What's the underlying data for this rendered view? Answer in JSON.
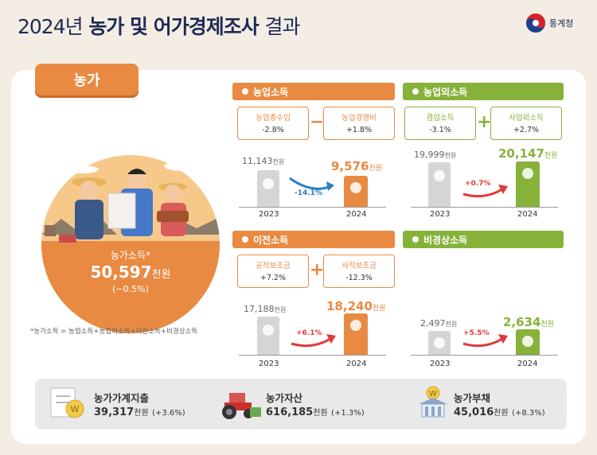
{
  "header": {
    "title_year": "2024년",
    "title_main": "농가 및 어가경제조사",
    "title_tail": "결과",
    "agency": "통계청"
  },
  "tab": {
    "label": "농가"
  },
  "farm_income": {
    "label": "농가소득*",
    "value": "50,597",
    "unit": "천원",
    "change": "(−0.5%)",
    "formula": "*농가소득 = 농업소득+농업외소득+이전소득+비경상소득"
  },
  "sections": {
    "ag_income": {
      "title": "농업소득",
      "comp1_name": "농업총수입",
      "comp1_pct": "-2.8%",
      "op": "−",
      "comp2_name": "농업경영비",
      "comp2_pct": "+1.8%",
      "v2023": "11,143",
      "v2024": "9,576",
      "unit": "천원",
      "change": "-14.1%",
      "y1": "2023",
      "y2": "2024"
    },
    "non_ag_income": {
      "title": "농업외소득",
      "comp1_name": "겸업소득",
      "comp1_pct": "-3.1%",
      "op": "+",
      "comp2_name": "사업외소득",
      "comp2_pct": "+2.7%",
      "v2023": "19,999",
      "v2024": "20,147",
      "unit": "천원",
      "change": "+0.7%",
      "y1": "2023",
      "y2": "2024"
    },
    "transfer_income": {
      "title": "이전소득",
      "comp1_name": "공적보조금",
      "comp1_pct": "+7.2%",
      "op": "+",
      "comp2_name": "사적보조금",
      "comp2_pct": "-12.3%",
      "v2023": "17,188",
      "v2024": "18,240",
      "unit": "천원",
      "change": "+6.1%",
      "y1": "2023",
      "y2": "2024"
    },
    "irregular_income": {
      "title": "비경상소득",
      "v2023": "2,497",
      "v2024": "2,634",
      "unit": "천원",
      "change": "+5.5%",
      "y1": "2023",
      "y2": "2024"
    }
  },
  "bottom": {
    "expense": {
      "name": "농가가계지출",
      "value": "39,317",
      "unit": "천원",
      "change": "(+3.6%)"
    },
    "assets": {
      "name": "농가자산",
      "value": "616,185",
      "unit": "천원",
      "change": "(+1.3%)"
    },
    "debt": {
      "name": "농가부채",
      "value": "45,016",
      "unit": "천원",
      "change": "(+8.3%)"
    }
  },
  "colors": {
    "orange": "#e98a42",
    "green": "#86b23a",
    "navy": "#1e2b56",
    "blue_arrow": "#2a7fc6",
    "red_arrow": "#e03a3a"
  }
}
